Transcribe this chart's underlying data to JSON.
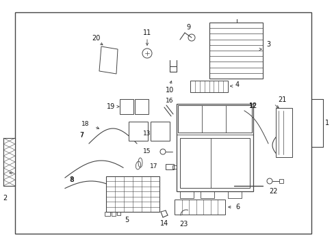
{
  "bg_color": "#ffffff",
  "line_color": "#444444",
  "text_color": "#111111",
  "fig_width": 4.89,
  "fig_height": 3.6,
  "dpi": 100
}
